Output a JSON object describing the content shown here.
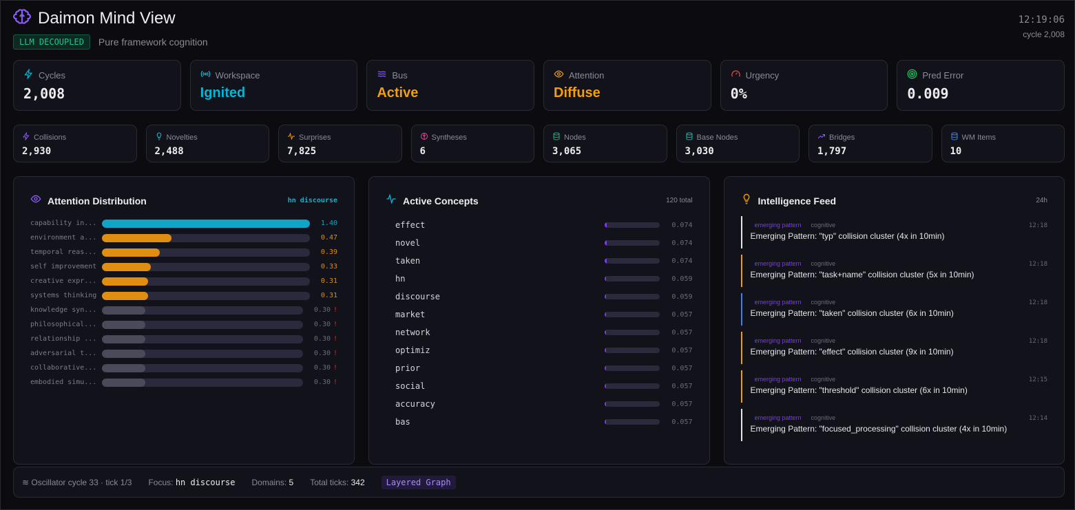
{
  "header": {
    "title": "Daimon Mind View",
    "badge": "LLM DECOUPLED",
    "subtitle": "Pure framework cognition",
    "time": "12:19:06",
    "cycle": "cycle 2,008"
  },
  "stats": [
    {
      "label": "Cycles",
      "value": "2,008",
      "icon": "lightning-icon",
      "color": "#ececf1",
      "icon_color": "#06b6d4",
      "mono": true
    },
    {
      "label": "Workspace",
      "value": "Ignited",
      "icon": "broadcast-icon",
      "color": "#06b6d4",
      "icon_color": "#06b6d4",
      "mono": false
    },
    {
      "label": "Bus",
      "value": "Active",
      "icon": "waves-icon",
      "color": "#f59e0b",
      "icon_color": "#8b5cf6",
      "mono": false
    },
    {
      "label": "Attention",
      "value": "Diffuse",
      "icon": "eye-icon",
      "color": "#f59e0b",
      "icon_color": "#f59e0b",
      "mono": false
    },
    {
      "label": "Urgency",
      "value": "0%",
      "icon": "gauge-icon",
      "color": "#ececf1",
      "icon_color": "#ef4444",
      "mono": true
    },
    {
      "label": "Pred Error",
      "value": "0.009",
      "icon": "target-icon",
      "color": "#ececf1",
      "icon_color": "#22c55e",
      "mono": true
    }
  ],
  "metrics": [
    {
      "label": "Collisions",
      "value": "2,930",
      "icon": "lightning-icon",
      "icon_color": "#8b5cf6"
    },
    {
      "label": "Novelties",
      "value": "2,488",
      "icon": "lightbulb-icon",
      "icon_color": "#06b6d4"
    },
    {
      "label": "Surprises",
      "value": "7,825",
      "icon": "pulse-icon",
      "icon_color": "#f59e0b"
    },
    {
      "label": "Syntheses",
      "value": "6",
      "icon": "brain-icon",
      "icon_color": "#ec4899"
    },
    {
      "label": "Nodes",
      "value": "3,065",
      "icon": "database-icon",
      "icon_color": "#10b981"
    },
    {
      "label": "Base Nodes",
      "value": "3,030",
      "icon": "database-icon",
      "icon_color": "#14b8a6"
    },
    {
      "label": "Bridges",
      "value": "1,797",
      "icon": "trend-icon",
      "icon_color": "#8b5cf6"
    },
    {
      "label": "WM Items",
      "value": "10",
      "icon": "database-icon",
      "icon_color": "#3b82f6"
    }
  ],
  "attention": {
    "title": "Attention Distribution",
    "focus": "hn discourse",
    "max": 1.4,
    "items": [
      {
        "name": "capability in...",
        "value": "1.40",
        "v": 1.4,
        "color": "#0ea5c6",
        "warn": ""
      },
      {
        "name": "environment a...",
        "value": "0.47",
        "v": 0.47,
        "color": "#e08e12",
        "warn": ""
      },
      {
        "name": "temporal reas...",
        "value": "0.39",
        "v": 0.39,
        "color": "#e08e12",
        "warn": ""
      },
      {
        "name": "self improvement",
        "value": "0.33",
        "v": 0.33,
        "color": "#e08e12",
        "warn": ""
      },
      {
        "name": "creative expr...",
        "value": "0.31",
        "v": 0.31,
        "color": "#e08e12",
        "warn": ""
      },
      {
        "name": "systems thinking",
        "value": "0.31",
        "v": 0.31,
        "color": "#e08e12",
        "warn": ""
      },
      {
        "name": "knowledge syn...",
        "value": "0.30",
        "v": 0.3,
        "color": "#4a4a5a",
        "warn": "!"
      },
      {
        "name": "philosophical...",
        "value": "0.30",
        "v": 0.3,
        "color": "#4a4a5a",
        "warn": "!"
      },
      {
        "name": "relationship ...",
        "value": "0.30",
        "v": 0.3,
        "color": "#4a4a5a",
        "warn": "!"
      },
      {
        "name": "adversarial t...",
        "value": "0.30",
        "v": 0.3,
        "color": "#4a4a5a",
        "warn": "!"
      },
      {
        "name": "collaborative...",
        "value": "0.30",
        "v": 0.3,
        "color": "#4a4a5a",
        "warn": "!"
      },
      {
        "name": "embodied simu...",
        "value": "0.30",
        "v": 0.3,
        "color": "#4a4a5a",
        "warn": "!"
      }
    ]
  },
  "concepts": {
    "title": "Active Concepts",
    "total": "120 total",
    "items": [
      {
        "name": "effect",
        "value": "0.074",
        "v": 0.074
      },
      {
        "name": "novel",
        "value": "0.074",
        "v": 0.074
      },
      {
        "name": "taken",
        "value": "0.074",
        "v": 0.074
      },
      {
        "name": "hn",
        "value": "0.059",
        "v": 0.059
      },
      {
        "name": "discourse",
        "value": "0.059",
        "v": 0.059
      },
      {
        "name": "market",
        "value": "0.057",
        "v": 0.057
      },
      {
        "name": "network",
        "value": "0.057",
        "v": 0.057
      },
      {
        "name": "optimiz",
        "value": "0.057",
        "v": 0.057
      },
      {
        "name": "prior",
        "value": "0.057",
        "v": 0.057
      },
      {
        "name": "social",
        "value": "0.057",
        "v": 0.057
      },
      {
        "name": "accuracy",
        "value": "0.057",
        "v": 0.057
      },
      {
        "name": "bas",
        "value": "0.057",
        "v": 0.057
      }
    ]
  },
  "feed": {
    "title": "Intelligence Feed",
    "range": "24h",
    "items": [
      {
        "kind": "emerging pattern",
        "category": "cognitive",
        "time": "12:18",
        "text": "Emerging Pattern: \"typ\" collision cluster (4x in 10min)",
        "color": "#e5e7eb"
      },
      {
        "kind": "emerging pattern",
        "category": "cognitive",
        "time": "12:18",
        "text": "Emerging Pattern: \"task+name\" collision cluster (5x in 10min)",
        "color": "#f59e0b"
      },
      {
        "kind": "emerging pattern",
        "category": "cognitive",
        "time": "12:18",
        "text": "Emerging Pattern: \"taken\" collision cluster (6x in 10min)",
        "color": "#3b82f6"
      },
      {
        "kind": "emerging pattern",
        "category": "cognitive",
        "time": "12:18",
        "text": "Emerging Pattern: \"effect\" collision cluster (9x in 10min)",
        "color": "#f59e0b"
      },
      {
        "kind": "emerging pattern",
        "category": "cognitive",
        "time": "12:15",
        "text": "Emerging Pattern: \"threshold\" collision cluster (6x in 10min)",
        "color": "#f59e0b"
      },
      {
        "kind": "emerging pattern",
        "category": "cognitive",
        "time": "12:14",
        "text": "Emerging Pattern: \"focused_processing\" collision cluster (4x in 10min)",
        "color": "#e5e7eb"
      }
    ]
  },
  "footer": {
    "oscillator": "Oscillator cycle 33 · tick 1/3",
    "focus_label": "Focus:",
    "focus": "hn discourse",
    "domains_label": "Domains:",
    "domains": "5",
    "ticks_label": "Total ticks:",
    "ticks": "342",
    "tag": "Layered Graph"
  }
}
